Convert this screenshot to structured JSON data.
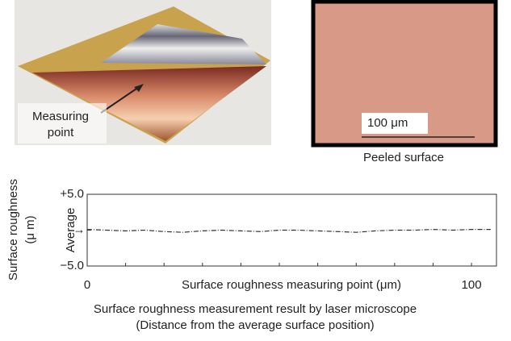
{
  "photo": {
    "label_lines": [
      "Measuring",
      "point"
    ]
  },
  "micrograph": {
    "scale_label": "100 μm",
    "caption": "Peeled surface"
  },
  "chart_data": {
    "type": "line",
    "y_label_lines": [
      "Surface roughness",
      "(μ m)"
    ],
    "x_label": "Surface roughness measuring point (μm)",
    "caption_lines": [
      "Surface roughness measurement result by laser microscope",
      "(Distance from the average surface position)"
    ],
    "average_marker": "→",
    "xlim": [
      0,
      106.5
    ],
    "xticks": [
      0,
      100
    ],
    "ylim": [
      -5,
      5
    ],
    "yticks": [
      {
        "value": 5,
        "label": "+5.0"
      },
      {
        "value": 0,
        "label": "Average"
      },
      {
        "value": -5,
        "label": "−5.0"
      }
    ],
    "x": [
      0,
      5,
      10,
      15,
      20,
      25,
      30,
      35,
      40,
      45,
      50,
      55,
      60,
      65,
      70,
      75,
      80,
      85,
      90,
      95,
      100,
      105
    ],
    "series": [
      {
        "color": "#333333",
        "values": [
          0.1,
          0,
          -0.1,
          0,
          -0.2,
          -0.3,
          -0.1,
          0,
          -0.1,
          -0.2,
          0,
          0,
          -0.1,
          -0.2,
          -0.3,
          -0.1,
          0,
          0,
          0.1,
          0,
          0.1,
          0.1
        ]
      }
    ]
  }
}
